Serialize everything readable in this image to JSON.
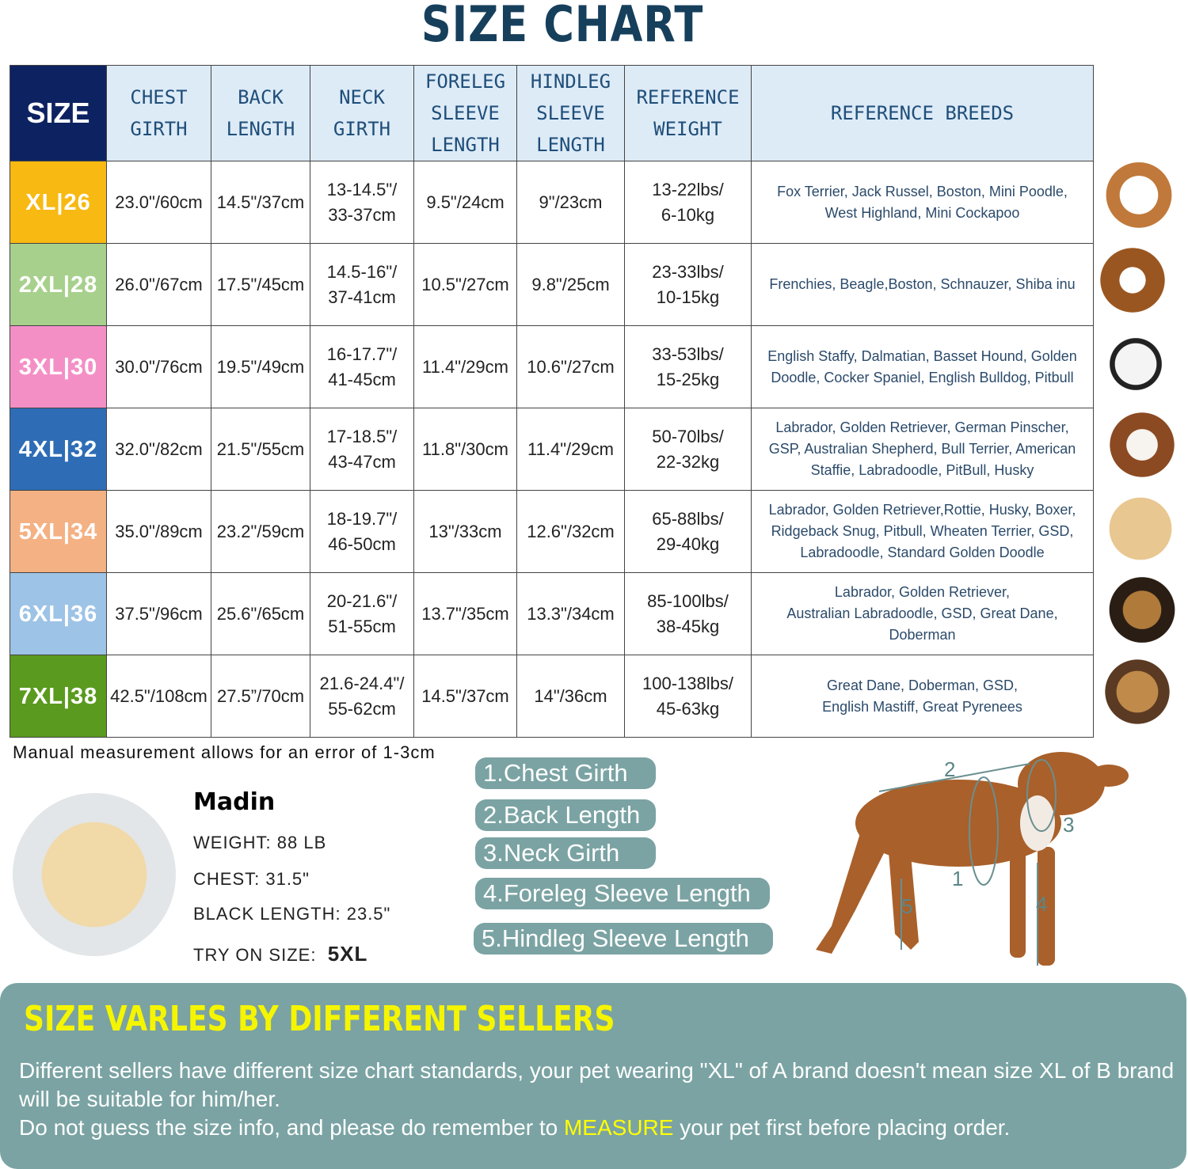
{
  "title": "SIZE CHART",
  "table": {
    "header": [
      [
        "SIZE"
      ],
      [
        "CHEST",
        "GIRTH"
      ],
      [
        "BACK",
        "LENGTH"
      ],
      [
        "NECK",
        "GIRTH"
      ],
      [
        "FORELEG",
        "SLEEVE",
        "LENGTH"
      ],
      [
        "HINDLEG",
        "SLEEVE",
        "LENGTH"
      ],
      [
        "REFERENCE",
        "WEIGHT"
      ],
      [
        "REFERENCE  BREEDS"
      ]
    ],
    "rows": [
      [
        "XL|26",
        "23.0\"/60cm",
        "14.5\"/37cm",
        [
          "13-14.5\"/",
          "33-37cm"
        ],
        "9.5\"/24cm",
        "9\"/23cm",
        [
          "13-22lbs/",
          "6-10kg"
        ],
        [
          "Fox Terrier, Jack Russel, Boston, Mini Poodle,",
          "West Highland, Mini Cockapoo"
        ]
      ],
      [
        "2XL|28",
        "26.0\"/67cm",
        "17.5\"/45cm",
        [
          "14.5-16\"/",
          "37-41cm"
        ],
        "10.5\"/27cm",
        "9.8\"/25cm",
        [
          "23-33lbs/",
          "10-15kg"
        ],
        [
          "Frenchies, Beagle,Boston, Schnauzer, Shiba inu"
        ]
      ],
      [
        "3XL|30",
        "30.0\"/76cm",
        "19.5\"/49cm",
        [
          "16-17.7\"/",
          "41-45cm"
        ],
        "11.4\"/29cm",
        "10.6\"/27cm",
        [
          "33-53lbs/",
          "15-25kg"
        ],
        [
          "English Staffy, Dalmatian, Basset Hound, Golden",
          "Doodle, Cocker Spaniel, English Bulldog, Pitbull"
        ]
      ],
      [
        "4XL|32",
        "32.0\"/82cm",
        "21.5\"/55cm",
        [
          "17-18.5\"/",
          "43-47cm"
        ],
        "11.8\"/30cm",
        "11.4\"/29cm",
        [
          "50-70lbs/",
          "22-32kg"
        ],
        [
          "Labrador, Golden Retriever, German Pinscher,",
          "GSP, Australian Shepherd, Bull Terrier, American",
          "Staffie, Labradoodle, PitBull, Husky"
        ]
      ],
      [
        "5XL|34",
        "35.0\"/89cm",
        "23.2\"/59cm",
        [
          "18-19.7\"/",
          "46-50cm"
        ],
        "13\"/33cm",
        "12.6\"/32cm",
        [
          "65-88lbs/",
          "29-40kg"
        ],
        [
          "Labrador, Golden Retriever,Rottie, Husky, Boxer,",
          "Ridgeback Snug, Pitbull, Wheaten Terrier, GSD,",
          "Labradoodle,  Standard Golden Doodle"
        ]
      ],
      [
        "6XL|36",
        "37.5\"/96cm",
        "25.6\"/65cm",
        [
          "20-21.6\"/",
          "51-55cm"
        ],
        "13.7\"/35cm",
        "13.3\"/34cm",
        [
          "85-100lbs/",
          "38-45kg"
        ],
        [
          "Labrador, Golden Retriever,",
          "Australian Labradoodle, GSD, Great Dane,",
          "Doberman"
        ]
      ],
      [
        "7XL|38",
        "42.5\"/108cm",
        "27.5”/70cm",
        [
          "21.6-24.4\"/",
          "55-62cm"
        ],
        "14.5\"/37cm",
        "14\"/36cm",
        [
          "100-138lbs/",
          "45-63kg"
        ],
        [
          "Great Dane, Doberman, GSD,",
          "English Mastiff, Great Pyrenees"
        ]
      ]
    ]
  },
  "note": "Manual measurement allows for an error of 1-3cm",
  "profile": {
    "name": "Madin",
    "lines": [
      "WEIGHT: 88 LB",
      "CHEST: 31.5\"",
      "BLACK LENGTH: 23.5\""
    ],
    "try_label": "TRY ON SIZE:",
    "try_size": "5XL"
  },
  "legend": [
    "1.Chest Girth",
    "2.Back Length",
    "3.Neck Girth",
    "4.Foreleg Sleeve Length",
    "5.Hindleg Sleeve Length"
  ],
  "diagram": {
    "labels": [
      "2",
      "3",
      "1",
      "4",
      "5"
    ]
  },
  "banner": {
    "title": "SIZE VARLES BY DIFFERENT SELLERS",
    "text1": "Different sellers have different size chart standards, your pet wearing \"XL\" of A brand doesn't mean size XL of B brand will be suitable for him/her.",
    "text2a": "Do not guess the size info, and please do remember to ",
    "highlight": "MEASURE",
    "text2b": " your pet first before placing order."
  }
}
